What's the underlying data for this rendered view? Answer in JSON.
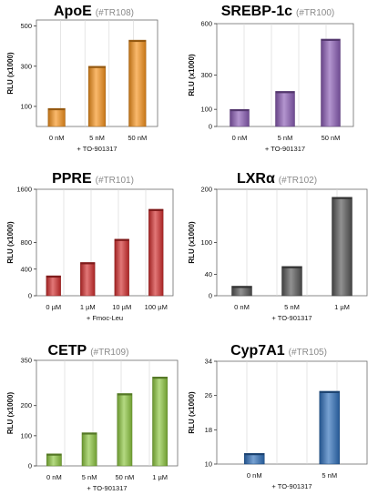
{
  "chart_data": [
    {
      "type": "bar",
      "title": "ApoE",
      "subtitle": "(#TR108)",
      "ylabel": "RLU (x1000)",
      "xlabel": "+ TO-901317",
      "categories": [
        "0 nM",
        "5 nM",
        "50 nM"
      ],
      "values": [
        90,
        300,
        430
      ],
      "yticks": [
        100,
        300,
        500
      ],
      "ylim": [
        0,
        530
      ],
      "color": "#f7941d",
      "grid": true
    },
    {
      "type": "bar",
      "title": "SREBP-1c",
      "subtitle": "(#TR100)",
      "ylabel": "RLU (x1000)",
      "xlabel": "+ TO-901317",
      "categories": [
        "0 nM",
        "5 nM",
        "50 nM"
      ],
      "values": [
        100,
        205,
        510
      ],
      "yticks": [
        0,
        100,
        300,
        600
      ],
      "ylim": [
        0,
        600
      ],
      "color": "#8a5cb5",
      "grid": true
    },
    {
      "type": "bar",
      "title": "PPRE",
      "subtitle": "(#TR101)",
      "ylabel": "RLU (x1000)",
      "xlabel": "+ Fmoc-Leu",
      "categories": [
        "0 µM",
        "1 µM",
        "10 µM",
        "100 µM"
      ],
      "values": [
        300,
        500,
        850,
        1300
      ],
      "yticks": [
        0,
        400,
        800,
        1600
      ],
      "ylim": [
        0,
        1600
      ],
      "color": "#d22d2d",
      "grid": true
    },
    {
      "type": "bar",
      "title": "LXR",
      "title_symbol": "α",
      "subtitle": "(#TR102)",
      "ylabel": "RLU (x1000)",
      "xlabel": "+ TO-901317",
      "categories": [
        "0 nM",
        "5 nM",
        "1 µM"
      ],
      "values": [
        18,
        55,
        185
      ],
      "yticks": [
        0,
        40,
        100,
        200
      ],
      "ylim": [
        0,
        200
      ],
      "color": "#555555",
      "grid": true
    },
    {
      "type": "bar",
      "title": "CETP",
      "subtitle": "(#TR109)",
      "ylabel": "RLU (x1000)",
      "xlabel": "+ TO-901317",
      "categories": [
        "0 nM",
        "5 nM",
        "50 nM",
        "1 µM"
      ],
      "values": [
        40,
        110,
        240,
        295
      ],
      "yticks": [
        0,
        100,
        200,
        350
      ],
      "ylim": [
        0,
        350
      ],
      "color": "#8cc63f",
      "grid": true
    },
    {
      "type": "bar",
      "title": "Cyp7A1",
      "subtitle": "(#TR105)",
      "ylabel": "RLU (x1000)",
      "xlabel": "+ TO-901317",
      "categories": [
        "0 nM",
        "5 nM"
      ],
      "values": [
        12.5,
        27
      ],
      "yticks": [
        10,
        18,
        26,
        34
      ],
      "ylim": [
        10,
        34
      ],
      "color": "#2e6fba",
      "grid": true
    }
  ]
}
